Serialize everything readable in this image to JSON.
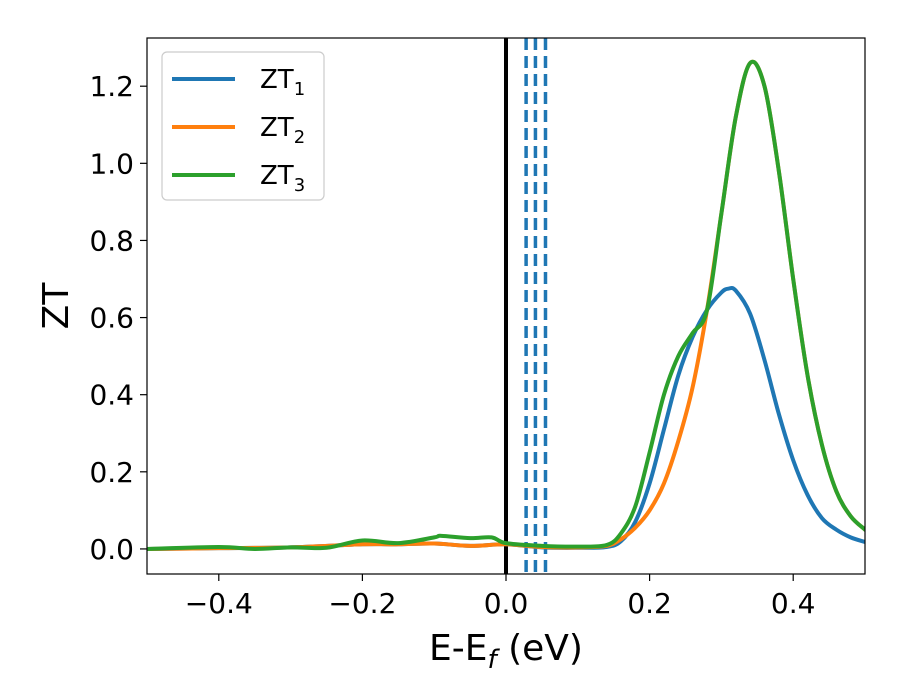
{
  "chart_data": {
    "type": "line",
    "title": "",
    "xlabel": {
      "base": "E-E",
      "sub": "f",
      "unit": " (eV)"
    },
    "ylabel": "ZT",
    "xlim": [
      -0.5,
      0.5
    ],
    "ylim": [
      -0.065,
      1.325
    ],
    "xticks": [
      -0.4,
      -0.2,
      0.0,
      0.2,
      0.4
    ],
    "xtick_labels": [
      "−0.4",
      "−0.2",
      "0.0",
      "0.2",
      "0.4"
    ],
    "yticks": [
      0.0,
      0.2,
      0.4,
      0.6,
      0.8,
      1.0,
      1.2
    ],
    "ytick_labels": [
      "0.0",
      "0.2",
      "0.4",
      "0.6",
      "0.8",
      "1.0",
      "1.2"
    ],
    "grid": false,
    "legend_position": "top-left",
    "series": [
      {
        "name": "ZT1",
        "legend_base": "ZT",
        "legend_sub": "1",
        "color": "#1f77b4",
        "x": [
          -0.5,
          -0.4,
          -0.3,
          -0.2,
          -0.15,
          -0.1,
          -0.05,
          0.0,
          0.05,
          0.1,
          0.14,
          0.16,
          0.18,
          0.2,
          0.22,
          0.24,
          0.26,
          0.28,
          0.3,
          0.31,
          0.32,
          0.34,
          0.36,
          0.38,
          0.4,
          0.42,
          0.44,
          0.46,
          0.48,
          0.5
        ],
        "y": [
          0.0,
          0.002,
          0.004,
          0.012,
          0.012,
          0.014,
          0.008,
          0.012,
          0.004,
          0.003,
          0.005,
          0.02,
          0.07,
          0.17,
          0.31,
          0.45,
          0.55,
          0.62,
          0.665,
          0.675,
          0.67,
          0.61,
          0.49,
          0.35,
          0.23,
          0.14,
          0.08,
          0.05,
          0.03,
          0.018
        ]
      },
      {
        "name": "ZT2",
        "legend_base": "ZT",
        "legend_sub": "2",
        "color": "#ff7f0e",
        "x": [
          -0.5,
          -0.4,
          -0.3,
          -0.2,
          -0.15,
          -0.1,
          -0.05,
          0.0,
          0.05,
          0.1,
          0.14,
          0.16,
          0.18,
          0.2,
          0.22,
          0.24,
          0.26,
          0.28,
          0.3,
          0.32,
          0.34,
          0.36,
          0.38,
          0.4,
          0.42,
          0.44,
          0.46,
          0.48,
          0.5
        ],
        "y": [
          0.0,
          0.002,
          0.004,
          0.012,
          0.012,
          0.014,
          0.008,
          0.012,
          0.005,
          0.004,
          0.008,
          0.025,
          0.055,
          0.1,
          0.17,
          0.28,
          0.42,
          0.62,
          0.87,
          1.12,
          1.26,
          1.2,
          0.98,
          0.7,
          0.45,
          0.27,
          0.15,
          0.085,
          0.05
        ]
      },
      {
        "name": "ZT3",
        "legend_base": "ZT",
        "legend_sub": "3",
        "color": "#2ca02c",
        "x": [
          -0.5,
          -0.4,
          -0.35,
          -0.3,
          -0.25,
          -0.2,
          -0.15,
          -0.1,
          -0.09,
          -0.05,
          -0.02,
          0.0,
          0.05,
          0.1,
          0.14,
          0.16,
          0.18,
          0.2,
          0.22,
          0.24,
          0.26,
          0.28,
          0.3,
          0.32,
          0.34,
          0.36,
          0.38,
          0.4,
          0.42,
          0.44,
          0.46,
          0.48,
          0.5
        ],
        "y": [
          0.0,
          0.005,
          0.0,
          0.004,
          0.003,
          0.022,
          0.015,
          0.03,
          0.034,
          0.028,
          0.03,
          0.015,
          0.008,
          0.006,
          0.01,
          0.04,
          0.11,
          0.25,
          0.4,
          0.5,
          0.56,
          0.62,
          0.87,
          1.12,
          1.26,
          1.2,
          0.98,
          0.7,
          0.45,
          0.27,
          0.15,
          0.085,
          0.05
        ]
      }
    ],
    "vlines": [
      {
        "x": 0.0,
        "style": "solid",
        "color": "#000000"
      },
      {
        "x": 0.028,
        "style": "dashed",
        "color": "#1f77b4"
      },
      {
        "x": 0.041,
        "style": "dashed",
        "color": "#1f77b4"
      },
      {
        "x": 0.055,
        "style": "dashed",
        "color": "#1f77b4"
      }
    ]
  }
}
